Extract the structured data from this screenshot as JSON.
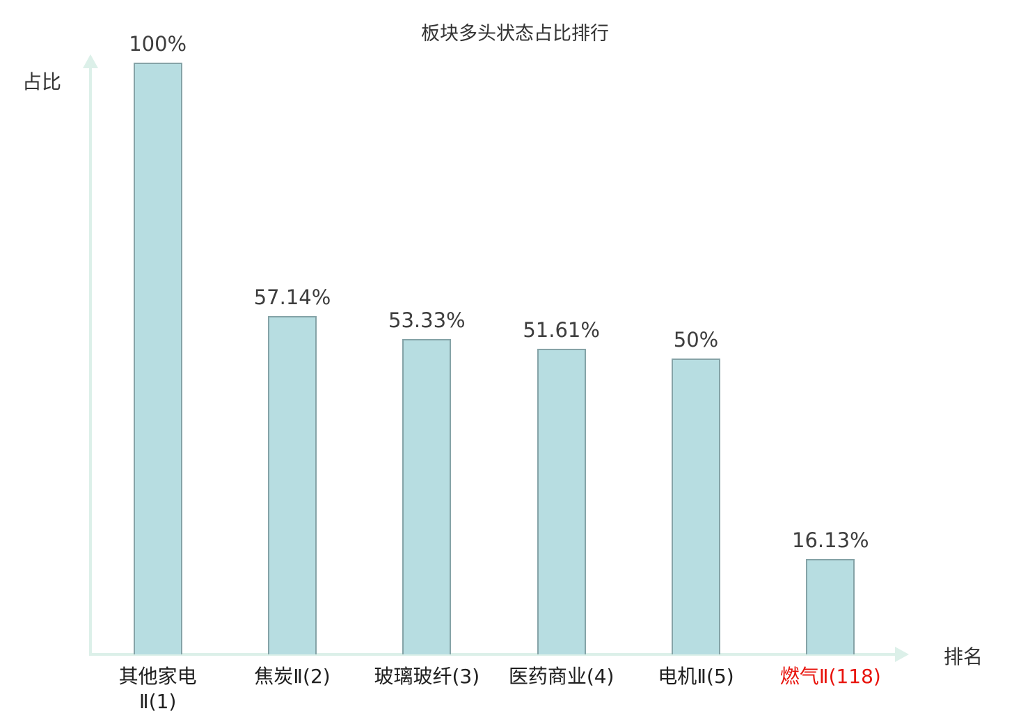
{
  "colors": {
    "bar_fill": "#b7dde1",
    "bar_border": "#85a3a7",
    "axis": "#dcf0e9",
    "title_text": "#333333",
    "value_text": "#3d3d3d",
    "category_text": "#1f1f1f",
    "highlight": "#e8130c"
  },
  "chart_data": {
    "type": "bar",
    "title": "板块多头状态占比排行",
    "xlabel": "排名",
    "ylabel": "占比",
    "categories": [
      "其他家电\nⅡ(1)",
      "焦炭Ⅱ(2)",
      "玻璃玻纤(3)",
      "医药商业(4)",
      "电机Ⅱ(5)",
      "燃气Ⅱ(118)"
    ],
    "values": [
      100,
      57.14,
      53.33,
      51.61,
      50,
      16.13
    ],
    "value_labels": [
      "100%",
      "57.14%",
      "53.33%",
      "51.61%",
      "50%",
      "16.13%"
    ],
    "highlight_index": 5,
    "ylim": [
      0,
      100
    ],
    "grid": false,
    "legend": null
  }
}
